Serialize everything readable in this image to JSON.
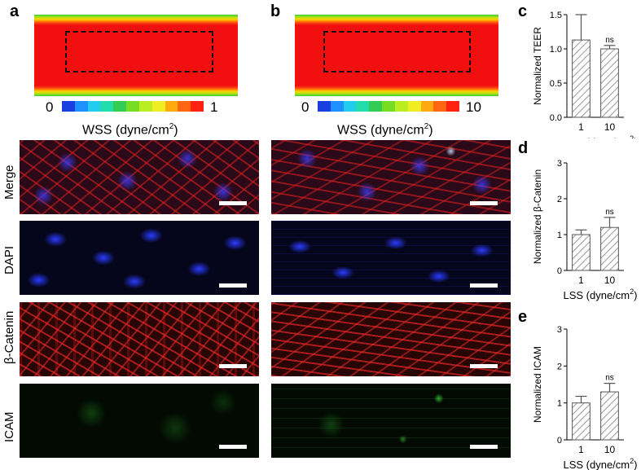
{
  "panels": {
    "a": "a",
    "b": "b",
    "c": "c",
    "d": "d",
    "e": "e"
  },
  "scales": {
    "a": {
      "min": "0",
      "max": "1"
    },
    "b": {
      "min": "0",
      "max": "10"
    }
  },
  "wss_label": "WSS (dyne/cm",
  "wss_sup": "2",
  "wss_close": ")",
  "rows": [
    "Merge",
    "DAPI",
    "β-Catenin",
    "ICAM"
  ],
  "colors": {
    "heat_center": "#f20f0f",
    "merge_bg": "#1e0a14",
    "dapi_bg": "#05051c",
    "catenin_bg": "#200605",
    "icam_bg": "#020a02"
  },
  "chart_data": [
    {
      "type": "bar",
      "panel": "c",
      "categories": [
        "1",
        "10"
      ],
      "values": [
        1.13,
        1.0
      ],
      "errors": [
        0.37,
        0.05
      ],
      "ylabel": "Normalized TEER",
      "xlabel": "LSS (dyne/cm",
      "xlabel_sup": "2",
      "xlabel_close": ")",
      "ylim": [
        0,
        1.5
      ],
      "yticks": [
        "0.0",
        "0.5",
        "1.0",
        "1.5"
      ],
      "annotation": "ns"
    },
    {
      "type": "bar",
      "panel": "d",
      "categories": [
        "1",
        "10"
      ],
      "values": [
        1.0,
        1.2
      ],
      "errors": [
        0.13,
        0.28
      ],
      "ylabel": "Normalized β-Catenin",
      "xlabel": "LSS (dyne/cm",
      "xlabel_sup": "2",
      "xlabel_close": ")",
      "ylim": [
        0,
        3
      ],
      "yticks": [
        "0",
        "1",
        "2",
        "3"
      ],
      "annotation": "ns"
    },
    {
      "type": "bar",
      "panel": "e",
      "categories": [
        "1",
        "10"
      ],
      "values": [
        1.0,
        1.3
      ],
      "errors": [
        0.18,
        0.23
      ],
      "ylabel": "Normalized ICAM",
      "xlabel": "LSS (dyne/cm",
      "xlabel_sup": "2",
      "xlabel_close": ")",
      "ylim": [
        0,
        3
      ],
      "yticks": [
        "0",
        "1",
        "2",
        "3"
      ],
      "annotation": "ns"
    }
  ]
}
